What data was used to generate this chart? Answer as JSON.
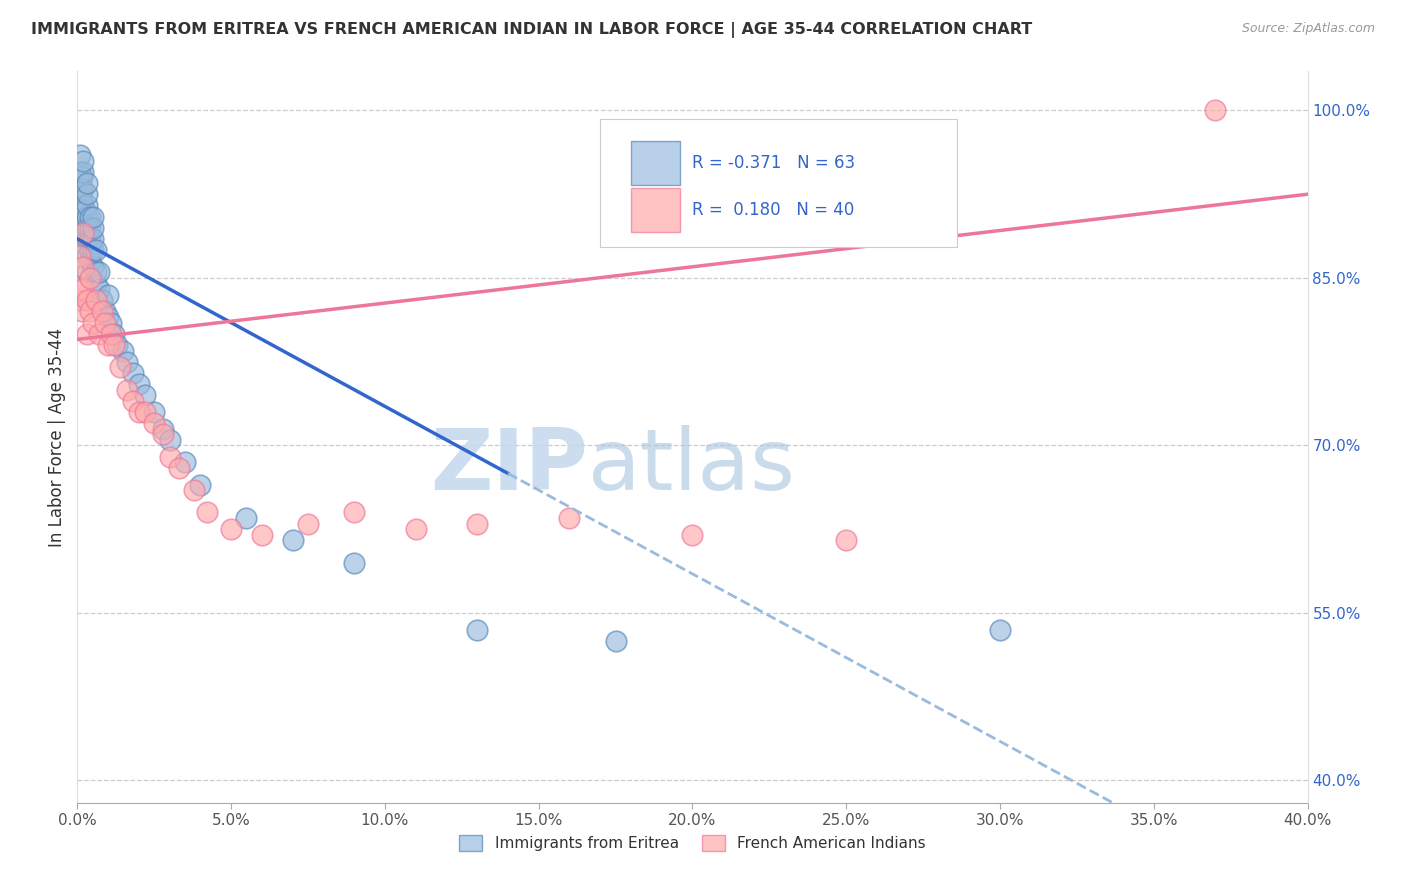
{
  "title": "IMMIGRANTS FROM ERITREA VS FRENCH AMERICAN INDIAN IN LABOR FORCE | AGE 35-44 CORRELATION CHART",
  "source": "Source: ZipAtlas.com",
  "ylabel": "In Labor Force | Age 35-44",
  "right_yticks": [
    0.4,
    0.55,
    0.7,
    0.85,
    1.0
  ],
  "right_yticklabels": [
    "40.0%",
    "55.0%",
    "70.0%",
    "85.0%",
    "100.0%"
  ],
  "legend_label_blue": "Immigrants from Eritrea",
  "legend_label_pink": "French American Indians",
  "watermark_zip": "ZIP",
  "watermark_atlas": "atlas",
  "blue_color": "#99BBDD",
  "pink_color": "#FFAAAA",
  "blue_edge": "#5588BB",
  "pink_edge": "#EE7799",
  "trend_blue": "#3366CC",
  "trend_pink": "#EE7799",
  "trend_dashed_color": "#99BBDD",
  "title_color": "#333333",
  "right_axis_color": "#3366CC",
  "legend_text_color": "#3366CC",
  "blue_scatter_x": [
    0.0005,
    0.0008,
    0.001,
    0.001,
    0.001,
    0.0012,
    0.0012,
    0.0015,
    0.0015,
    0.002,
    0.002,
    0.002,
    0.002,
    0.002,
    0.002,
    0.0025,
    0.0025,
    0.003,
    0.003,
    0.003,
    0.003,
    0.003,
    0.003,
    0.003,
    0.003,
    0.004,
    0.004,
    0.004,
    0.004,
    0.004,
    0.005,
    0.005,
    0.005,
    0.005,
    0.005,
    0.006,
    0.006,
    0.006,
    0.007,
    0.007,
    0.008,
    0.009,
    0.01,
    0.01,
    0.011,
    0.012,
    0.013,
    0.015,
    0.016,
    0.018,
    0.02,
    0.022,
    0.025,
    0.028,
    0.03,
    0.035,
    0.04,
    0.055,
    0.07,
    0.09,
    0.13,
    0.175,
    0.3
  ],
  "blue_scatter_y": [
    0.905,
    0.915,
    0.93,
    0.945,
    0.96,
    0.9,
    0.93,
    0.92,
    0.94,
    0.88,
    0.9,
    0.915,
    0.93,
    0.945,
    0.955,
    0.89,
    0.91,
    0.855,
    0.87,
    0.885,
    0.895,
    0.905,
    0.915,
    0.925,
    0.935,
    0.865,
    0.875,
    0.885,
    0.895,
    0.905,
    0.86,
    0.875,
    0.885,
    0.895,
    0.905,
    0.845,
    0.855,
    0.875,
    0.84,
    0.855,
    0.83,
    0.82,
    0.815,
    0.835,
    0.81,
    0.8,
    0.79,
    0.785,
    0.775,
    0.765,
    0.755,
    0.745,
    0.73,
    0.715,
    0.705,
    0.685,
    0.665,
    0.635,
    0.615,
    0.595,
    0.535,
    0.525,
    0.535
  ],
  "pink_scatter_x": [
    0.0005,
    0.001,
    0.001,
    0.0015,
    0.002,
    0.002,
    0.002,
    0.003,
    0.003,
    0.004,
    0.004,
    0.005,
    0.006,
    0.007,
    0.008,
    0.009,
    0.01,
    0.011,
    0.012,
    0.014,
    0.016,
    0.018,
    0.02,
    0.022,
    0.025,
    0.028,
    0.03,
    0.033,
    0.038,
    0.042,
    0.05,
    0.06,
    0.075,
    0.09,
    0.11,
    0.13,
    0.16,
    0.2,
    0.25,
    0.37
  ],
  "pink_scatter_y": [
    0.83,
    0.84,
    0.87,
    0.82,
    0.84,
    0.86,
    0.89,
    0.8,
    0.83,
    0.82,
    0.85,
    0.81,
    0.83,
    0.8,
    0.82,
    0.81,
    0.79,
    0.8,
    0.79,
    0.77,
    0.75,
    0.74,
    0.73,
    0.73,
    0.72,
    0.71,
    0.69,
    0.68,
    0.66,
    0.64,
    0.625,
    0.62,
    0.63,
    0.64,
    0.625,
    0.63,
    0.635,
    0.62,
    0.615,
    1.0
  ],
  "xmin": 0.0,
  "xmax": 0.4,
  "ymin": 0.38,
  "ymax": 1.035,
  "trend_blue_x_start": 0.0,
  "trend_blue_x_solid_end": 0.14,
  "trend_blue_x_end": 0.4,
  "trend_pink_x_start": 0.0,
  "trend_pink_x_end": 0.4,
  "figsize": [
    14.06,
    8.92
  ],
  "dpi": 100
}
